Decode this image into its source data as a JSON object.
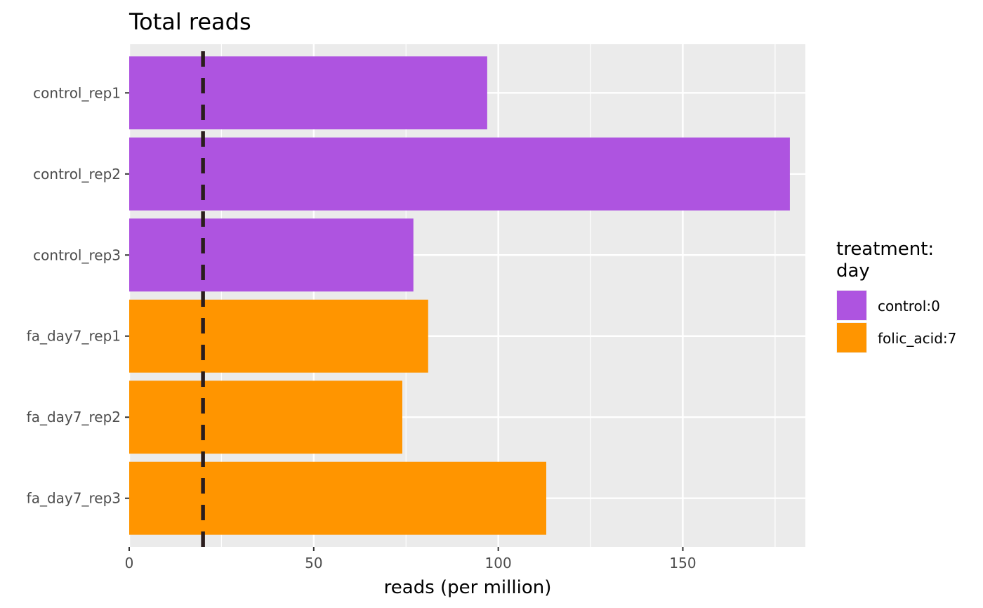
{
  "chart_data": {
    "type": "bar",
    "orientation": "horizontal",
    "title": "Total reads",
    "xlabel": "reads (per million)",
    "ylabel": "",
    "xlim": [
      0,
      183.2
    ],
    "xticks": [
      0,
      50,
      100,
      150
    ],
    "xtick_labels": [
      "0",
      "50",
      "100",
      "150"
    ],
    "categories": [
      "control_rep1",
      "control_rep2",
      "control_rep3",
      "fa_day7_rep1",
      "fa_day7_rep2",
      "fa_day7_rep3"
    ],
    "values": [
      97,
      179,
      77,
      81,
      74,
      113
    ],
    "groups": [
      "control:0",
      "control:0",
      "control:0",
      "folic_acid:7",
      "folic_acid:7",
      "folic_acid:7"
    ],
    "reference_line": {
      "x": 20,
      "style": "dashed",
      "color": "#2b1d1d"
    },
    "legend": {
      "title_lines": [
        "treatment:",
        "day"
      ],
      "position": "right",
      "entries": [
        {
          "label": "control:0",
          "color": "#ae54e0"
        },
        {
          "label": "folic_acid:7",
          "color": "#ff9500"
        }
      ]
    },
    "grid": true,
    "panel_background": "#ebebeb"
  }
}
